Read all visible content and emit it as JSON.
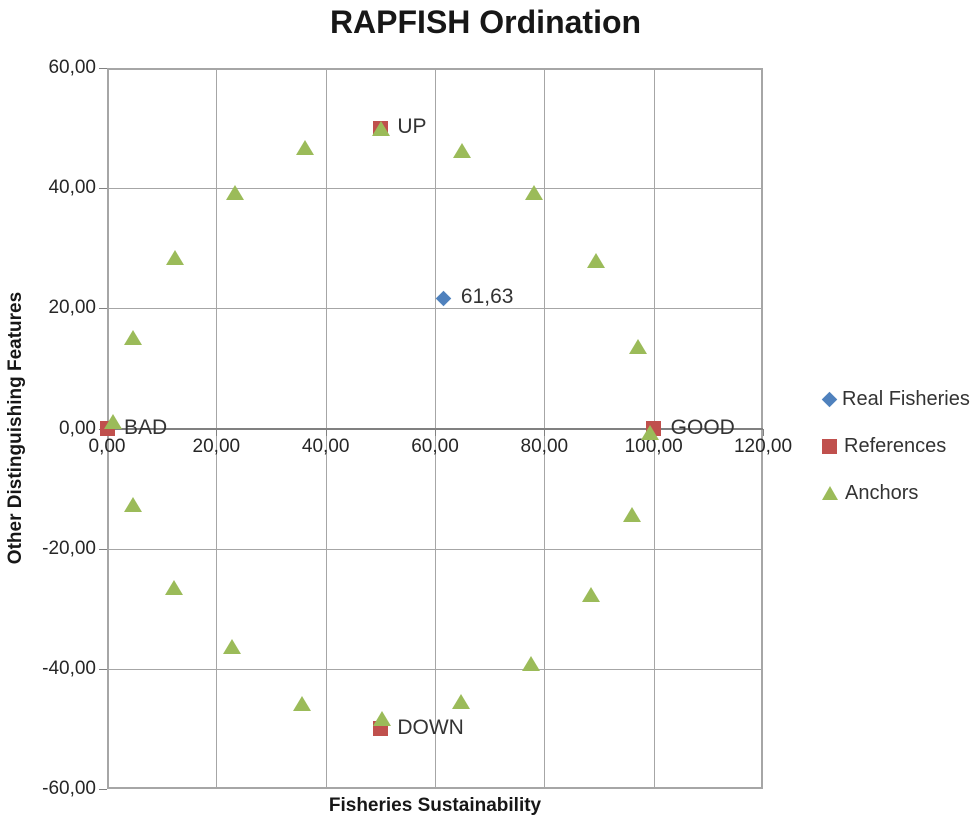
{
  "title": "RAPFISH Ordination",
  "axes": {
    "x_label": "Fisheries Sustainability",
    "y_label": "Other Distinguishing  Features"
  },
  "legend": [
    {
      "label": "Real Fisheries",
      "marker": "diamond",
      "color": "#4f81bd"
    },
    {
      "label": "References",
      "marker": "square",
      "color": "#c0504d"
    },
    {
      "label": "Anchors",
      "marker": "triangle",
      "color": "#9bbb59"
    }
  ],
  "colors": {
    "real_fisheries": "#4f81bd",
    "references": "#c0504d",
    "anchors": "#9bbb59",
    "gridline": "#a6a6a6",
    "axis_line": "#808080"
  },
  "chart_data": {
    "type": "scatter",
    "title": "RAPFISH Ordination",
    "xlabel": "Fisheries Sustainability",
    "ylabel": "Other Distinguishing  Features",
    "xlim": [
      0,
      120
    ],
    "ylim": [
      -60,
      60
    ],
    "grid": true,
    "legend_position": "right",
    "x_ticks": {
      "values": [
        0,
        20,
        40,
        60,
        80,
        100,
        120
      ],
      "labels": [
        "0,00",
        "20,00",
        "40,00",
        "60,00",
        "80,00",
        "100,00",
        "120,00"
      ]
    },
    "y_ticks": {
      "values": [
        60,
        40,
        20,
        0,
        -20,
        -40,
        -60
      ],
      "labels": [
        "60,00",
        "40,00",
        "20,00",
        "0,00",
        "-20,00",
        "-40,00",
        "-60,00"
      ]
    },
    "series": [
      {
        "name": "Real Fisheries",
        "marker": "diamond",
        "color": "#4f81bd",
        "points": [
          {
            "x": 61.63,
            "y": 21.7,
            "label": "61,63"
          }
        ]
      },
      {
        "name": "References",
        "marker": "square",
        "color": "#c0504d",
        "points": [
          {
            "x": 50,
            "y": 50,
            "label": "UP"
          },
          {
            "x": 0,
            "y": 0,
            "label": "BAD"
          },
          {
            "x": 100,
            "y": 0,
            "label": "GOOD"
          },
          {
            "x": 50,
            "y": -50,
            "label": "DOWN"
          }
        ]
      },
      {
        "name": "Anchors",
        "marker": "triangle",
        "color": "#9bbb59",
        "points": [
          {
            "x": 50.1,
            "y": 49.9
          },
          {
            "x": 36.3,
            "y": 46.7
          },
          {
            "x": 64.9,
            "y": 46.3
          },
          {
            "x": 23.5,
            "y": 39.3
          },
          {
            "x": 78.2,
            "y": 39.3
          },
          {
            "x": 12.5,
            "y": 28.4
          },
          {
            "x": 89.5,
            "y": 27.9
          },
          {
            "x": 4.8,
            "y": 15.1
          },
          {
            "x": 97.1,
            "y": 13.7
          },
          {
            "x": 1.1,
            "y": 1.2
          },
          {
            "x": 99.4,
            "y": -0.6
          },
          {
            "x": 4.8,
            "y": -12.7
          },
          {
            "x": 96.0,
            "y": -14.3
          },
          {
            "x": 12.3,
            "y": -26.4
          },
          {
            "x": 88.5,
            "y": -27.7
          },
          {
            "x": 22.9,
            "y": -36.3
          },
          {
            "x": 77.5,
            "y": -39.1
          },
          {
            "x": 35.7,
            "y": -45.8
          },
          {
            "x": 64.8,
            "y": -45.4
          },
          {
            "x": 50.3,
            "y": -48.2
          }
        ]
      }
    ]
  }
}
